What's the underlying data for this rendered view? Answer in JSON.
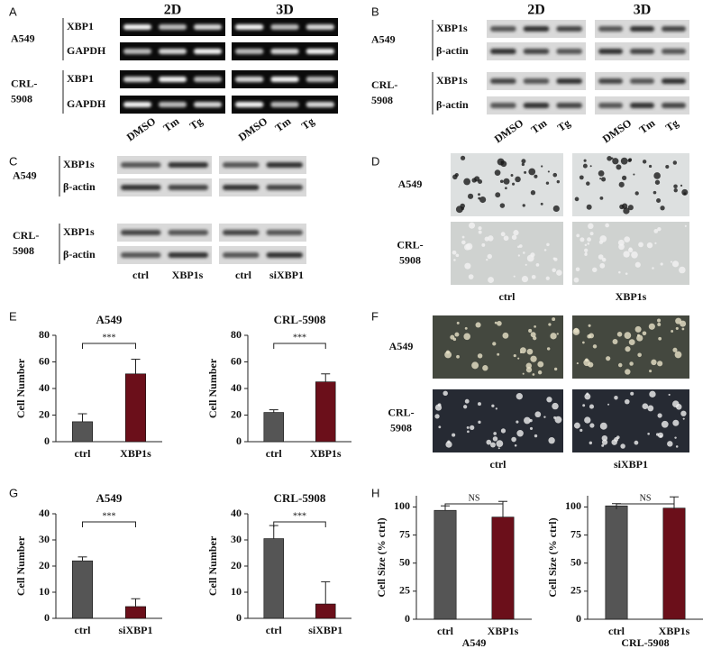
{
  "panel_letters": [
    "A",
    "B",
    "C",
    "D",
    "E",
    "F",
    "G",
    "H"
  ],
  "blot_A": {
    "headers": [
      "2D",
      "3D"
    ],
    "rows": [
      {
        "cell": [
          "A549"
        ],
        "bands": [
          "XBP1",
          "GAPDH"
        ]
      },
      {
        "cell": [
          "CRL-",
          "5908"
        ],
        "bands": [
          "XBP1",
          "GAPDH"
        ]
      }
    ],
    "lanes": [
      "DMSO",
      "Tm",
      "Tg",
      "DMSO",
      "Tm",
      "Tg"
    ]
  },
  "blot_B": {
    "headers": [
      "2D",
      "3D"
    ],
    "rows": [
      {
        "cell": [
          "A549"
        ],
        "bands": [
          "XBP1s",
          "β-actin"
        ]
      },
      {
        "cell": [
          "CRL-",
          "5908"
        ],
        "bands": [
          "XBP1s",
          "β-actin"
        ]
      }
    ],
    "lanes": [
      "DMSO",
      "Tm",
      "Tg",
      "DMSO",
      "Tm",
      "Tg"
    ]
  },
  "blot_C": {
    "rows": [
      {
        "cell": [
          "A549"
        ],
        "bands": [
          "XBP1s",
          "β-actin"
        ]
      },
      {
        "cell": [
          "CRL-",
          "5908"
        ],
        "bands": [
          "XBP1s",
          "β-actin"
        ]
      }
    ],
    "lanes": [
      "ctrl",
      "XBP1s",
      "ctrl",
      "siXBP1"
    ]
  },
  "images_D": {
    "rows": [
      [
        "A549"
      ],
      [
        "CRL-",
        "5908"
      ]
    ],
    "columns": [
      "ctrl",
      "XBP1s"
    ]
  },
  "images_F": {
    "rows": [
      [
        "A549"
      ],
      [
        "CRL-",
        "5908"
      ]
    ],
    "columns": [
      "ctrl",
      "siXBP1"
    ]
  },
  "chart_data": [
    {
      "type": "bar",
      "title": "A549",
      "ylabel": "Cell Number",
      "categories": [
        "ctrl",
        "XBP1s"
      ],
      "values": [
        15,
        51
      ],
      "errors": [
        6,
        11
      ],
      "colors": [
        "#555555",
        "#6b0f1a"
      ],
      "ylim": [
        0,
        80
      ],
      "yticks": [
        0,
        20,
        40,
        60,
        80
      ],
      "annotation": "***"
    },
    {
      "type": "bar",
      "title": "CRL-5908",
      "ylabel": "Cell Number",
      "categories": [
        "ctrl",
        "XBP1s"
      ],
      "values": [
        22,
        45
      ],
      "errors": [
        2,
        6
      ],
      "colors": [
        "#555555",
        "#6b0f1a"
      ],
      "ylim": [
        0,
        80
      ],
      "yticks": [
        0,
        20,
        40,
        60,
        80
      ],
      "annotation": "***"
    },
    {
      "type": "bar",
      "title": "A549",
      "ylabel": "Cell Number",
      "categories": [
        "ctrl",
        "siXBP1"
      ],
      "values": [
        22,
        4.5
      ],
      "errors": [
        1.5,
        3
      ],
      "colors": [
        "#555555",
        "#6b0f1a"
      ],
      "ylim": [
        0,
        40
      ],
      "yticks": [
        0,
        10,
        20,
        30,
        40
      ],
      "annotation": "***"
    },
    {
      "type": "bar",
      "title": "CRL-5908",
      "ylabel": "Cell Number",
      "categories": [
        "ctrl",
        "siXBP1"
      ],
      "values": [
        30.5,
        5.5
      ],
      "errors": [
        5,
        8.5
      ],
      "colors": [
        "#555555",
        "#6b0f1a"
      ],
      "ylim": [
        0,
        40
      ],
      "yticks": [
        0,
        10,
        20,
        30,
        40
      ],
      "annotation": "***"
    },
    {
      "type": "bar",
      "xlabel": "A549",
      "ylabel": "Cell Size (% ctrl)",
      "categories": [
        "ctrl",
        "XBP1s"
      ],
      "values": [
        97,
        91
      ],
      "errors": [
        4,
        14
      ],
      "colors": [
        "#555555",
        "#6b0f1a"
      ],
      "ylim": [
        0,
        110
      ],
      "yticks": [
        0,
        25,
        50,
        75,
        100
      ],
      "annotation": "NS"
    },
    {
      "type": "bar",
      "xlabel": "CRL-5908",
      "ylabel": "Cell Size (% ctrl)",
      "categories": [
        "ctrl",
        "XBP1s"
      ],
      "values": [
        101,
        99
      ],
      "errors": [
        2,
        10
      ],
      "colors": [
        "#555555",
        "#6b0f1a"
      ],
      "ylim": [
        0,
        110
      ],
      "yticks": [
        0,
        25,
        50,
        75,
        100
      ],
      "annotation": "NS"
    }
  ]
}
